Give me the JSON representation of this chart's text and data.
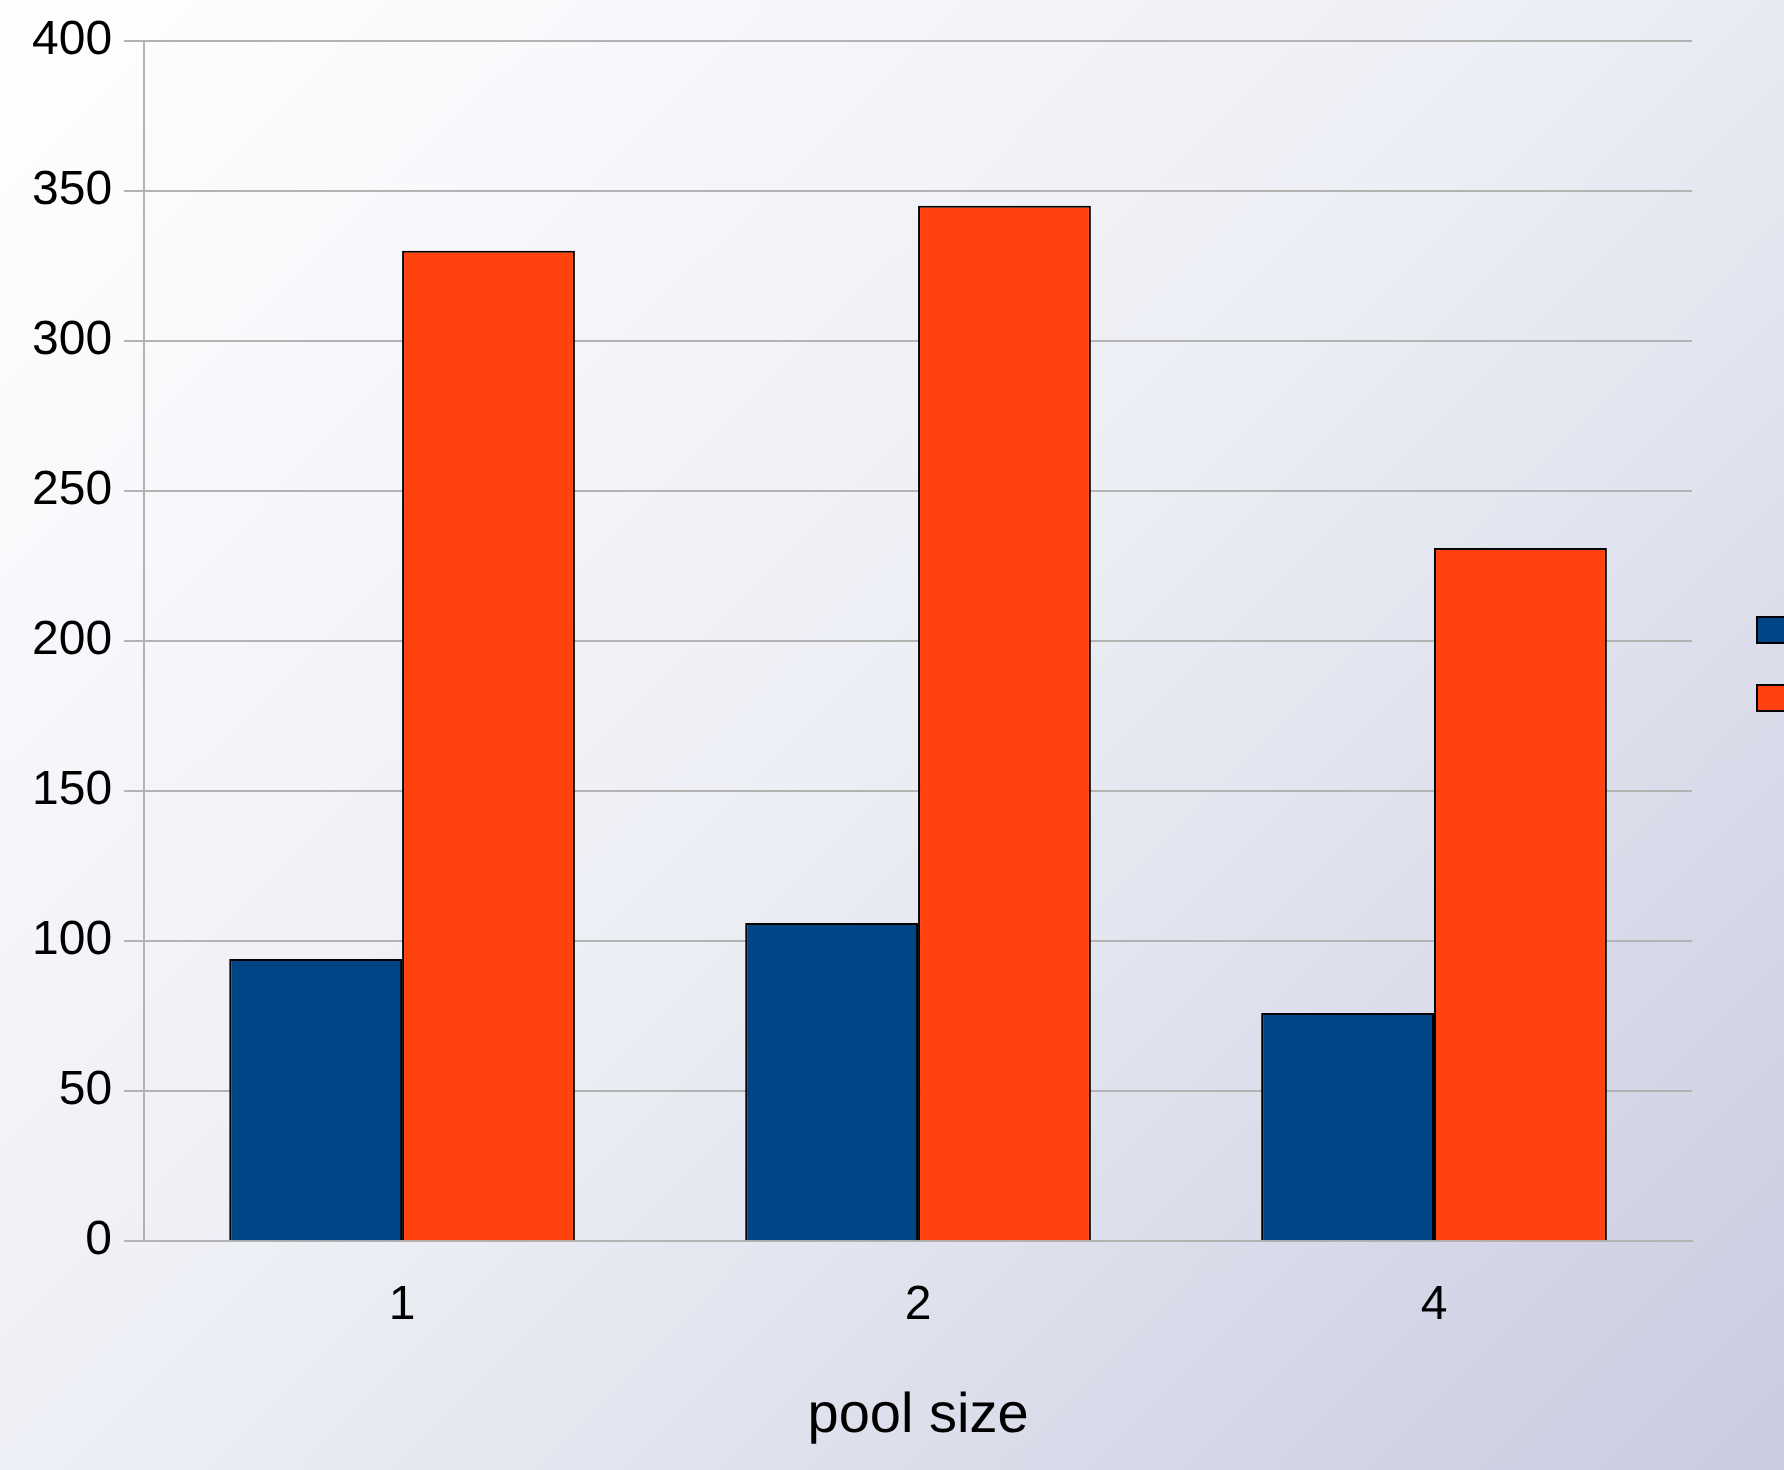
{
  "chart_data": {
    "type": "bar",
    "xlabel": "pool size",
    "categories": [
      "1",
      "2",
      "4"
    ],
    "series": [
      {
        "color": "#004586",
        "values": [
          94,
          106,
          76
        ]
      },
      {
        "color": "#ff420e",
        "values": [
          330,
          345,
          231
        ]
      }
    ],
    "ylim": [
      0,
      400
    ],
    "yticks": [
      0,
      50,
      100,
      150,
      200,
      250,
      300,
      350,
      400
    ],
    "grid": "y"
  }
}
